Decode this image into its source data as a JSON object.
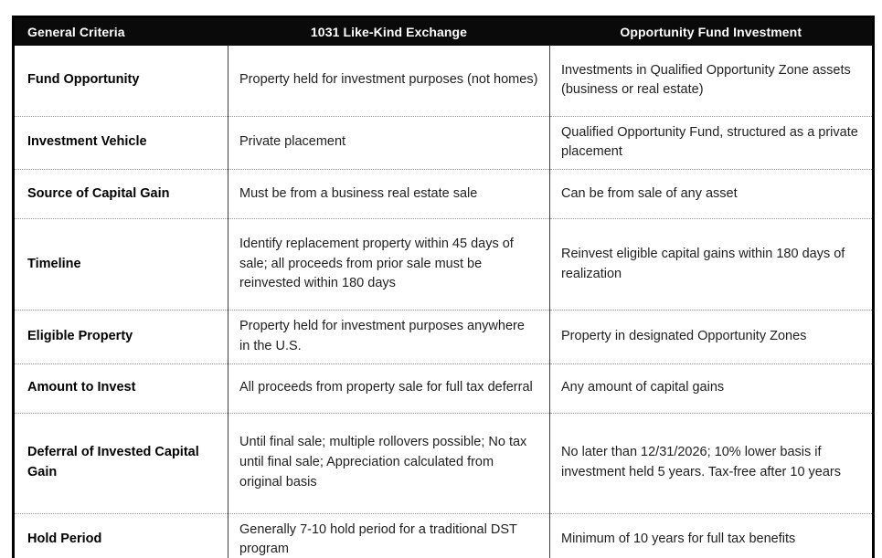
{
  "table": {
    "headers": {
      "criteria": "General Criteria",
      "like_kind": "1031 Like-Kind Exchange",
      "opportunity_fund": "Opportunity Fund Investment"
    },
    "rows": [
      {
        "criteria": "Fund Opportunity",
        "like_kind": "Property held for investment purposes (not homes)",
        "opportunity_fund": "Investments in Qualified Opportunity Zone assets (business or real estate)"
      },
      {
        "criteria": "Investment Vehicle",
        "like_kind": "Private placement",
        "opportunity_fund": "Qualified Opportunity Fund, structured as a private placement"
      },
      {
        "criteria": "Source of Capital Gain",
        "like_kind": "Must be from a business real estate sale",
        "opportunity_fund": "Can be from sale of any asset"
      },
      {
        "criteria": "Timeline",
        "like_kind": "Identify replacement property within 45 days of sale; all proceeds from prior sale must be reinvested within 180 days",
        "opportunity_fund": "Reinvest eligible capital gains within 180 days of realization"
      },
      {
        "criteria": "Eligible Property",
        "like_kind": "Property held for investment purposes anywhere in the U.S.",
        "opportunity_fund": "Property in designated Opportunity Zones"
      },
      {
        "criteria": "Amount to Invest",
        "like_kind": "All proceeds from property sale for full tax deferral",
        "opportunity_fund": "Any amount of capital gains"
      },
      {
        "criteria": "Deferral of Invested Capital Gain",
        "like_kind": "Until final sale; multiple rollovers possible; No tax until final sale; Appreciation calculated from original basis",
        "opportunity_fund": "No later than 12/31/2026; 10% lower basis if investment held 5 years. Tax-free after 10 years"
      },
      {
        "criteria": "Hold Period",
        "like_kind": "Generally 7-10 hold period for a traditional DST program",
        "opportunity_fund": "Minimum of 10 years for full tax benefits"
      }
    ],
    "colors": {
      "header_bg": "#0a0a0a",
      "header_text": "#ffffff",
      "body_text": "#1f1f1f",
      "outer_border": "#000000",
      "column_divider": "#3f3f3f",
      "row_divider": "#9b9b9b"
    }
  }
}
